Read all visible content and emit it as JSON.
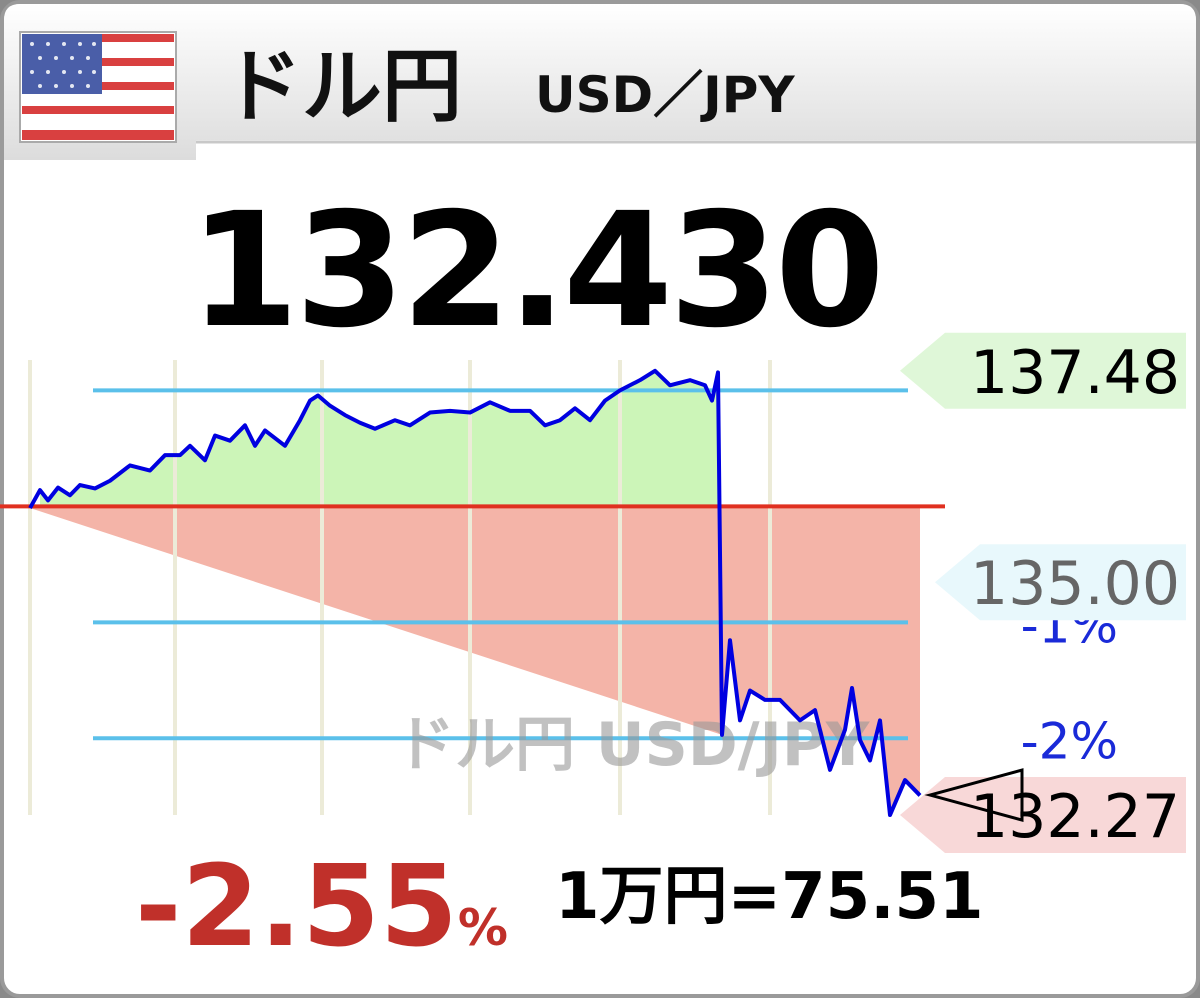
{
  "header": {
    "title": "ドル円",
    "subtitle": "USD／JPY"
  },
  "quote": {
    "price": "132.430",
    "change": "-2.55",
    "change_unit": "%",
    "conversion": "1万円=75.51"
  },
  "chart_data": {
    "type": "line",
    "watermark": "ドル円 USD/JPY",
    "x": [
      30,
      40,
      48,
      58,
      70,
      80,
      95,
      110,
      130,
      150,
      165,
      180,
      190,
      205,
      215,
      230,
      245,
      255,
      265,
      285,
      300,
      310,
      318,
      330,
      345,
      360,
      375,
      395,
      410,
      430,
      450,
      470,
      490,
      510,
      530,
      545,
      560,
      575,
      590,
      605,
      620,
      640,
      655,
      670,
      690,
      705,
      712,
      718,
      722,
      730,
      740,
      750,
      765,
      780,
      800,
      815,
      830,
      845,
      852,
      860,
      870,
      880,
      890,
      905,
      920
    ],
    "series": [
      {
        "color": "#0000e0",
        "values": [
          135.87,
          136.08,
          135.96,
          136.11,
          136.02,
          136.14,
          136.1,
          136.19,
          136.37,
          136.31,
          136.49,
          136.49,
          136.6,
          136.43,
          136.72,
          136.66,
          136.84,
          136.6,
          136.78,
          136.6,
          136.9,
          137.13,
          137.19,
          137.07,
          136.96,
          136.87,
          136.8,
          136.9,
          136.84,
          136.99,
          137.01,
          136.99,
          137.11,
          137.01,
          137.01,
          136.84,
          136.9,
          137.04,
          136.9,
          137.13,
          137.25,
          137.37,
          137.48,
          137.31,
          137.37,
          137.31,
          137.13,
          137.46,
          133.21,
          134.32,
          133.38,
          133.73,
          133.62,
          133.62,
          133.38,
          133.5,
          132.8,
          133.27,
          133.76,
          133.15,
          132.91,
          133.38,
          132.27,
          132.68,
          132.5
        ]
      }
    ],
    "xlim": [
      0,
      1200
    ],
    "xticks": [
      30,
      175,
      322,
      470,
      620,
      770
    ],
    "ylim": [
      132.2,
      137.7
    ],
    "gridlines": [
      137.25
    ],
    "yticks": [
      {
        "value": 134.53,
        "label": "-1%"
      },
      {
        "value": 133.17,
        "label": "-2%"
      }
    ],
    "open": 135.89,
    "open_color": "#e03020",
    "up_fill": "#ccf5b8",
    "down_fill": "#f4b4a8",
    "price_tags": [
      {
        "value": 137.48,
        "label": "137.48",
        "color": "#dff7d8",
        "text_color": "#000000"
      },
      {
        "value": 135,
        "label": "135.00",
        "color": "#e8f8fc",
        "text_color": "#666666"
      },
      {
        "value": 132.27,
        "label": "132.27",
        "color": "#f8d8d8",
        "text_color": "#000000"
      }
    ]
  }
}
